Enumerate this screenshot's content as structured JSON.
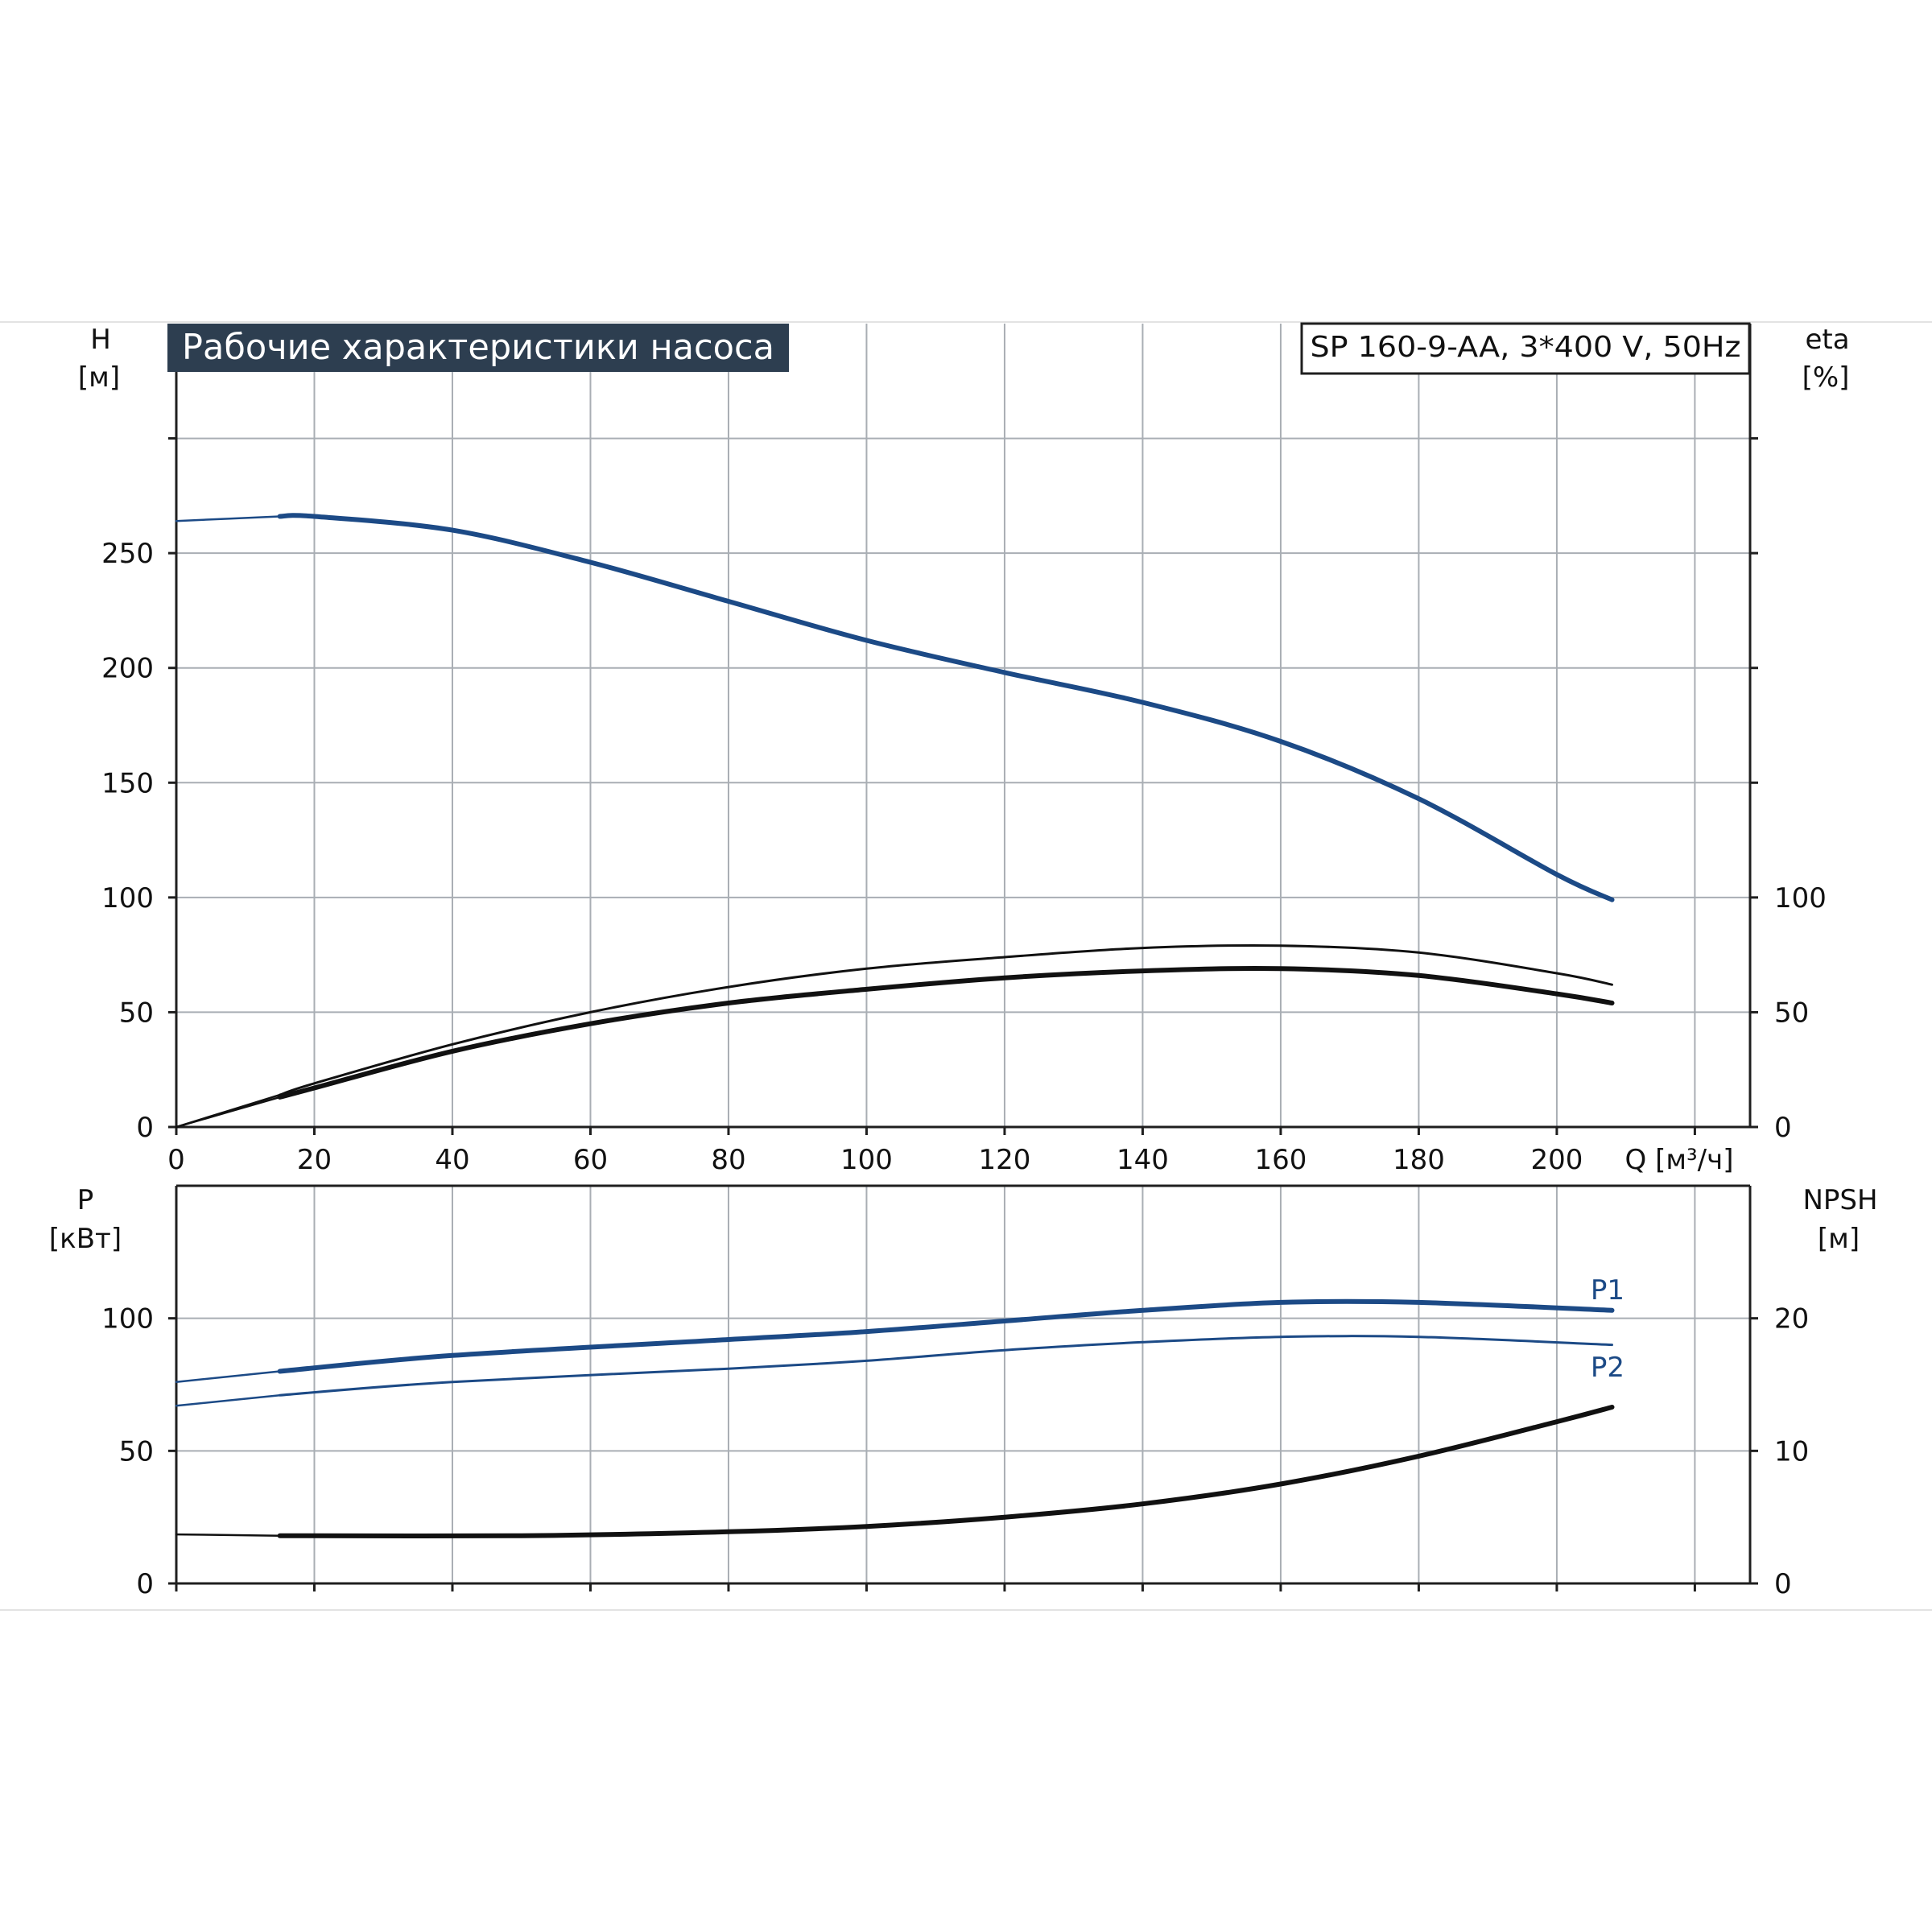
{
  "title": "Рабочие характеристики насоса",
  "model": "SP 160-9-AA, 3*400 V, 50Hz",
  "colors": {
    "blue": "#1c4a86",
    "black": "#111111",
    "title_bg": "#2d3e50",
    "grid": "#a9aeb4"
  },
  "chart_data": [
    {
      "type": "line",
      "panel": "top",
      "x_axis": {
        "label": "Q [м³/ч]",
        "range": [
          0,
          228
        ],
        "ticks": [
          0,
          20,
          40,
          60,
          80,
          100,
          120,
          140,
          160,
          180,
          200
        ]
      },
      "y_axis_left": {
        "label_top": "H",
        "label_unit": "[м]",
        "range": [
          0,
          350
        ],
        "ticks": [
          0,
          50,
          100,
          150,
          200,
          250
        ]
      },
      "y_axis_right": {
        "label_top": "eta",
        "label_unit": "[%]",
        "range": [
          0,
          350
        ],
        "ticks": [
          0,
          50,
          100
        ]
      },
      "grid": true,
      "series": [
        {
          "key": "H",
          "color": "#1c4a86",
          "width": 6,
          "x": [
            0,
            15,
            20,
            40,
            60,
            80,
            100,
            120,
            140,
            160,
            180,
            200,
            208
          ],
          "y": [
            264,
            266,
            266,
            260,
            246,
            229,
            212,
            198,
            185,
            168,
            143,
            110,
            99
          ]
        },
        {
          "key": "eta-thin",
          "color": "#111111",
          "width": 3,
          "x": [
            0,
            15,
            20,
            40,
            60,
            80,
            100,
            120,
            140,
            160,
            180,
            200,
            208
          ],
          "y": [
            0,
            14,
            19,
            36,
            50,
            61,
            69,
            74,
            78,
            79,
            76,
            67,
            62
          ]
        },
        {
          "key": "eta-thick",
          "color": "#111111",
          "width": 6,
          "x": [
            0,
            15,
            20,
            40,
            60,
            80,
            100,
            120,
            140,
            160,
            180,
            200,
            208
          ],
          "y": [
            0,
            13,
            17,
            33,
            45,
            54,
            60,
            65,
            68,
            69,
            66,
            58,
            54
          ]
        }
      ]
    },
    {
      "type": "line",
      "panel": "bottom",
      "x_axis": {
        "range": [
          0,
          228
        ],
        "ticks": [
          0,
          20,
          40,
          60,
          80,
          100,
          120,
          140,
          160,
          180,
          200
        ]
      },
      "y_axis_left": {
        "label_top": "P",
        "label_unit": "[кВт]",
        "range": [
          0,
          150
        ],
        "ticks": [
          0,
          50,
          100
        ]
      },
      "y_axis_right": {
        "label_top": "NPSH",
        "label_unit": "[м]",
        "range": [
          0,
          30
        ],
        "ticks": [
          0,
          10,
          20
        ]
      },
      "grid": true,
      "series": [
        {
          "key": "P1",
          "name": "P1",
          "color": "#1c4a86",
          "width": 6,
          "x": [
            0,
            15,
            40,
            80,
            100,
            120,
            140,
            160,
            180,
            208
          ],
          "y": [
            76,
            80,
            86,
            92,
            95,
            99,
            103,
            106,
            106,
            103
          ]
        },
        {
          "key": "P2",
          "name": "P2",
          "color": "#1c4a86",
          "width": 3,
          "x": [
            0,
            15,
            40,
            80,
            100,
            120,
            140,
            160,
            180,
            208
          ],
          "y": [
            67,
            71,
            76,
            81,
            84,
            88,
            91,
            93,
            93,
            90
          ]
        },
        {
          "key": "NPSH",
          "color": "#111111",
          "width": 6,
          "axis": "right",
          "x": [
            0,
            15,
            50,
            80,
            100,
            120,
            140,
            160,
            180,
            200,
            208
          ],
          "y": [
            3.7,
            3.6,
            3.6,
            3.9,
            4.3,
            5.0,
            6.0,
            7.5,
            9.6,
            12.2,
            13.3
          ]
        }
      ]
    }
  ]
}
